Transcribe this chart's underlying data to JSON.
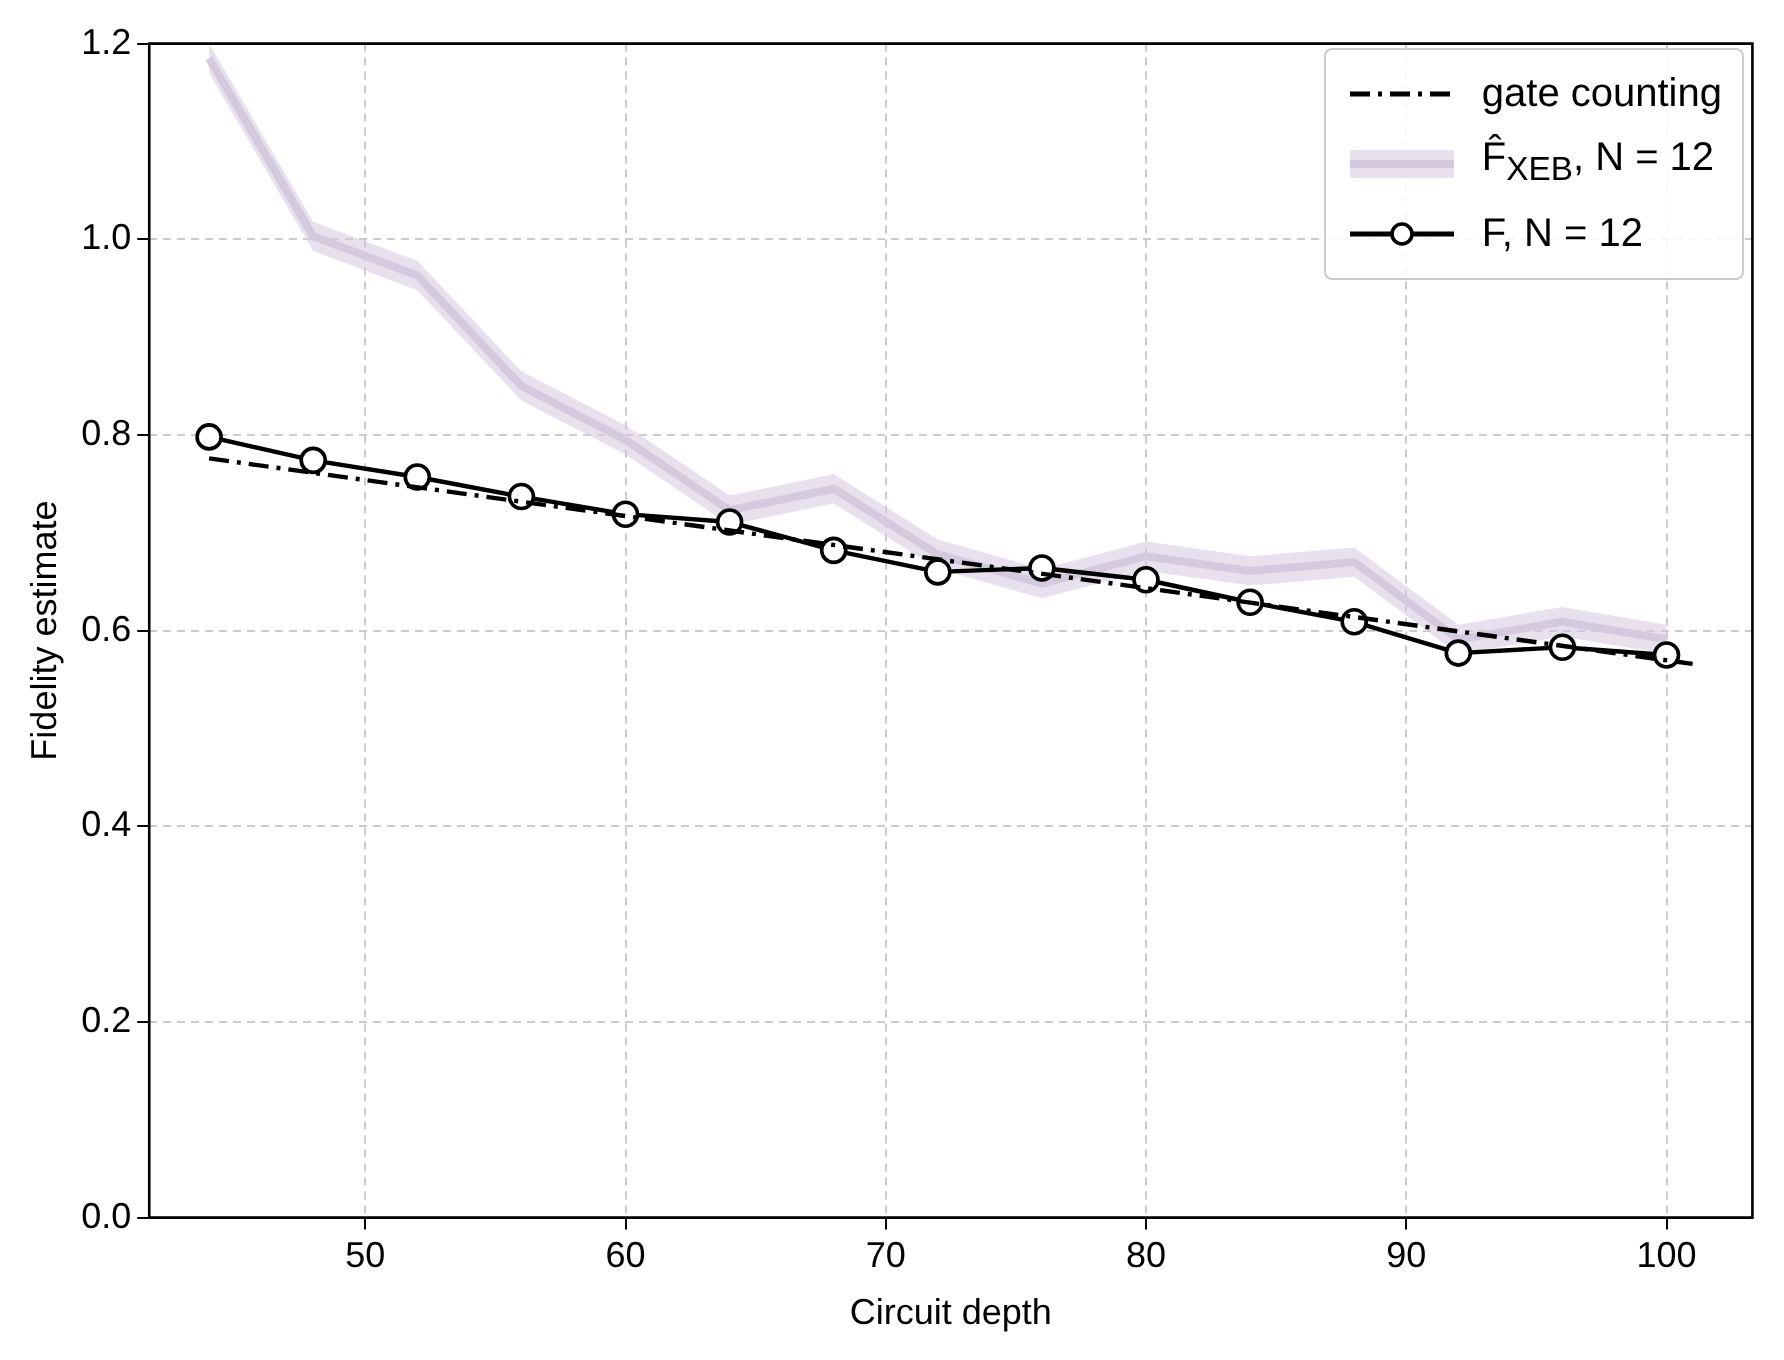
{
  "chart_data": {
    "type": "line",
    "xlabel": "Circuit depth",
    "ylabel": "Fidelity estimate",
    "xlim": [
      41.7,
      103.3
    ],
    "xticks": [
      50,
      60,
      70,
      80,
      90,
      100
    ],
    "ylim": [
      0,
      1.2
    ],
    "yticks": [
      {
        "value": 0,
        "label": "0.0"
      },
      {
        "value": 0.2,
        "label": "0.2"
      },
      {
        "value": 0.4,
        "label": "0.4"
      },
      {
        "value": 0.6,
        "label": "0.6"
      },
      {
        "value": 0.8,
        "label": "0.8"
      },
      {
        "value": 1.0,
        "label": "1.0"
      },
      {
        "value": 1.2,
        "label": "1.2"
      }
    ],
    "grid": true,
    "legend": "top right",
    "series": [
      {
        "name": "gate counting",
        "color": "#000000",
        "line_style": "dashed",
        "marker": "none",
        "x": [
          44,
          101
        ],
        "values": [
          0.776,
          0.566
        ]
      },
      {
        "name": "F̂$_{XEB}$, N = 12",
        "color": "#d5c9de",
        "x": [
          44,
          48,
          52,
          56,
          60,
          64,
          68,
          72,
          76,
          80,
          84,
          88,
          92,
          96,
          100
        ],
        "values": [
          1.185,
          1.003,
          0.963,
          0.85,
          0.795,
          0.723,
          0.745,
          0.678,
          0.648,
          0.676,
          0.661,
          0.67,
          0.591,
          0.609,
          0.591
        ],
        "lower": [
          1.17,
          0.988,
          0.948,
          0.835,
          0.78,
          0.708,
          0.73,
          0.663,
          0.633,
          0.661,
          0.646,
          0.655,
          0.576,
          0.594,
          0.576
        ],
        "upper": [
          1.2,
          1.018,
          0.978,
          0.865,
          0.81,
          0.738,
          0.76,
          0.693,
          0.663,
          0.691,
          0.676,
          0.685,
          0.606,
          0.624,
          0.606
        ]
      },
      {
        "name": "F, N = 12",
        "color": "#000000",
        "line_style": "solid",
        "marker": "circle",
        "x": [
          44,
          48,
          52,
          56,
          60,
          64,
          68,
          72,
          76,
          80,
          84,
          88,
          92,
          96,
          100
        ],
        "values": [
          0.798,
          0.774,
          0.757,
          0.737,
          0.719,
          0.711,
          0.682,
          0.66,
          0.664,
          0.652,
          0.629,
          0.609,
          0.577,
          0.583,
          0.575
        ]
      }
    ]
  }
}
